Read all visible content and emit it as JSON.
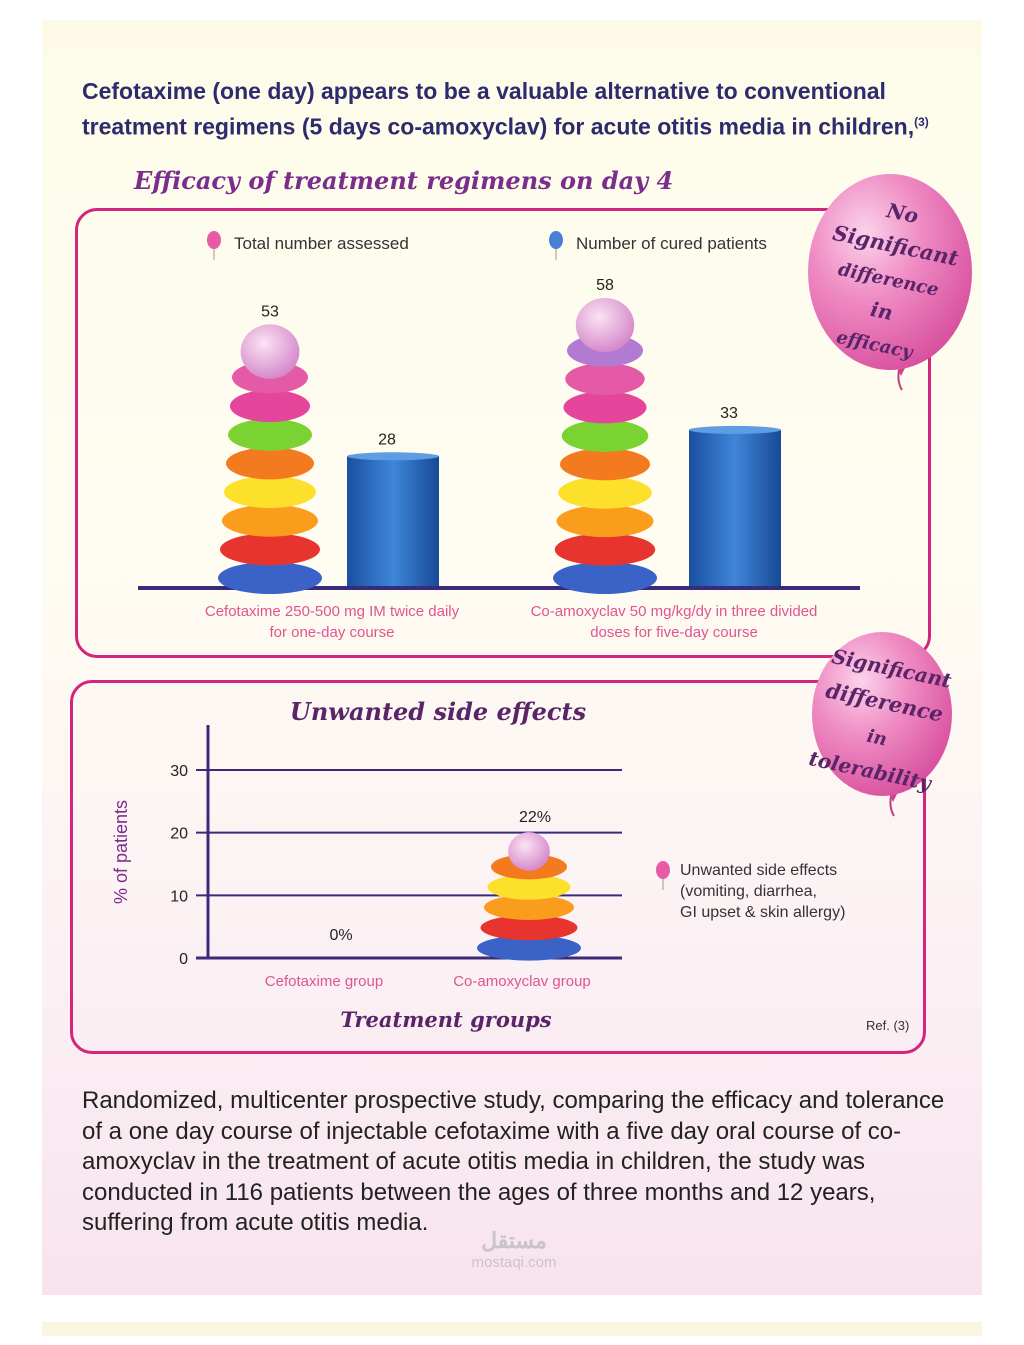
{
  "headline": {
    "text": "Cefotaxime (one day) appears to be a valuable alternative to conventional treatment regimens (5 days co-amoxyclav) for acute otitis media in children,",
    "ref": "(3)"
  },
  "balloons": {
    "efficacy": [
      "No",
      "Significant",
      "difference",
      "in",
      "efficacy"
    ],
    "tolerability": [
      "Significant",
      "difference",
      "in",
      "tolerability"
    ]
  },
  "chart_data": [
    {
      "type": "bar",
      "title": "Efficacy of treatment regimens on day 4",
      "categories": [
        "Cefotaxime 250-500 mg IM twice daily for one-day course",
        "Co-amoxyclav 50 mg/kg/dy in three divided doses for five-day course"
      ],
      "category_lines": [
        [
          "Cefotaxime 250-500 mg IM twice daily",
          "for one-day course"
        ],
        [
          "Co-amoxyclav 50 mg/kg/dy in three divided",
          "doses for five-day course"
        ]
      ],
      "series": [
        {
          "name": "Total number assessed",
          "values": [
            53,
            58
          ],
          "color": "#e85aa8"
        },
        {
          "name": "Number of cured patients",
          "values": [
            28,
            33
          ],
          "color": "#1f5fb5"
        }
      ],
      "ylim": [
        0,
        65
      ]
    },
    {
      "type": "bar",
      "title": "Unwanted side effects",
      "xlabel": "Treatment groups",
      "ylabel": "% of patients",
      "categories": [
        "Cefotaxime group",
        "Co-amoxyclav group"
      ],
      "series": [
        {
          "name": "Unwanted side effects (vomiting, diarrhea, GI upset & skin allergy)",
          "legend_lines": [
            "Unwanted side effects",
            "(vomiting, diarrhea,",
            "GI upset & skin allergy)"
          ],
          "values": [
            0,
            22
          ],
          "labels": [
            "0%",
            "22%"
          ],
          "color": "#e85aa8"
        }
      ],
      "yticks": [
        0,
        10,
        20,
        30
      ],
      "ylim": [
        0,
        30
      ],
      "grid": true,
      "ref": "Ref. (3)"
    }
  ],
  "body_text": "Randomized, multicenter prospective study, comparing the efficacy and tolerance of a one day course of injectable cefotaxime with a five day oral course of co-amoxyclav in the treatment of acute otitis media in children, the study was conducted in 116 patients between the ages of three months and 12 years, suffering from acute otitis media.",
  "watermark": {
    "logo": "مستقل",
    "url": "mostaqi.com"
  },
  "colors": {
    "accent": "#d3247e",
    "title": "#7a2d8c",
    "headline": "#2e2a6e",
    "axis": "#3a2a7a",
    "bar_blue": "#1f5fb5",
    "label_pink": "#e0558f"
  }
}
